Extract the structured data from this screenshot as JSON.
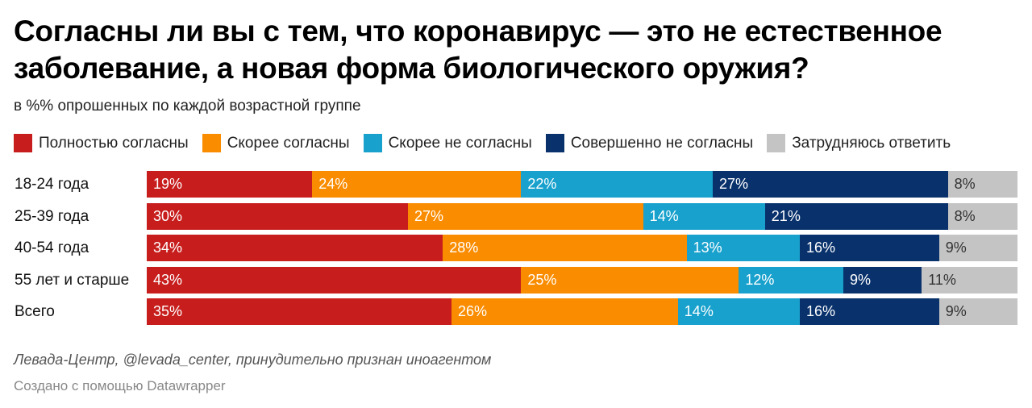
{
  "title": "Согласны ли вы с тем, что коронавирус — это не естественное заболевание, а новая форма биологического оружия?",
  "subtitle": "в %% опрошенных по каждой возрастной группе",
  "footer": {
    "source": "Левада-Центр, @levada_center, принудительно признан иноагентом",
    "credit": "Создано с помощью Datawrapper"
  },
  "chart_data": {
    "type": "bar",
    "orientation": "horizontal",
    "stacked": true,
    "title": "Согласны ли вы с тем, что коронавирус — это не естественное заболевание, а новая форма биологического оружия?",
    "subtitle": "в %% опрошенных по каждой возрастной группе",
    "xlabel": "",
    "ylabel": "",
    "xlim": [
      0,
      100
    ],
    "grid": false,
    "legend_position": "top",
    "value_suffix": "%",
    "categories": [
      "18-24 года",
      "25-39 года",
      "40-54 года",
      "55 лет и старше",
      "Всего"
    ],
    "series": [
      {
        "name": "Полностью согласны",
        "color": "#c71e1d",
        "label_color": "#ffffff",
        "values": [
          19,
          30,
          34,
          43,
          35
        ]
      },
      {
        "name": "Скорее согласны",
        "color": "#fa8c00",
        "label_color": "#ffffff",
        "values": [
          24,
          27,
          28,
          25,
          26
        ]
      },
      {
        "name": "Скорее не согласны",
        "color": "#18a1cd",
        "label_color": "#ffffff",
        "values": [
          22,
          14,
          13,
          12,
          14
        ]
      },
      {
        "name": "Совершенно не согласны",
        "color": "#09326c",
        "label_color": "#ffffff",
        "values": [
          27,
          21,
          16,
          9,
          16
        ]
      },
      {
        "name": "Затрудняюсь ответить",
        "color": "#c4c4c4",
        "label_color": "#333333",
        "values": [
          8,
          8,
          9,
          11,
          9
        ]
      }
    ]
  }
}
